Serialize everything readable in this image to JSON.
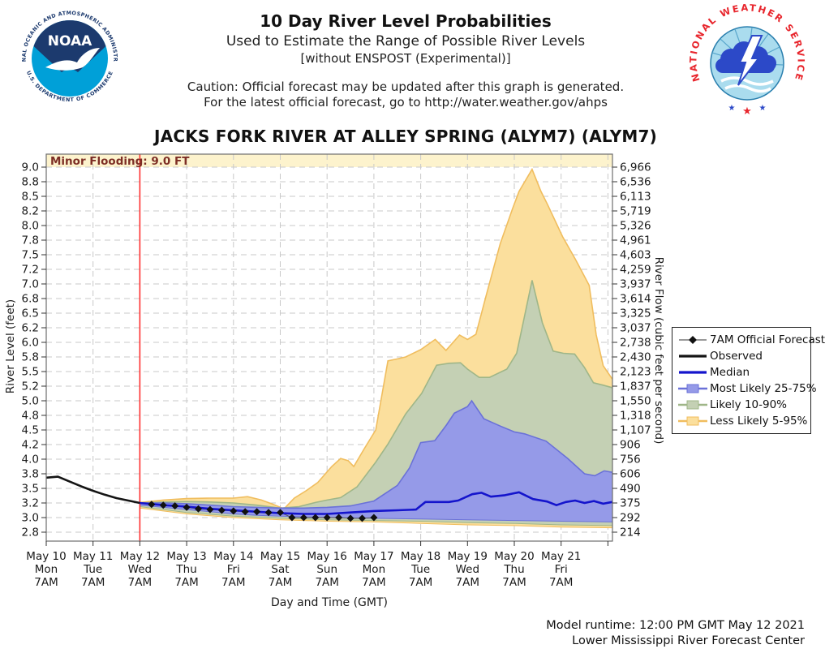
{
  "header": {
    "title": "10 Day River Level Probabilities",
    "subtitle": "Used to Estimate the Range of Possible River Levels",
    "subtitle2": "[without ENSPOST (Experimental)]",
    "caution_line1": "Caution: Official forecast may be updated after this graph is generated.",
    "caution_line2": "For the latest official forecast, go to http://water.weather.gov/ahps",
    "station_title": "JACKS FORK RIVER AT ALLEY SPRING (ALYM7) (ALYM7)"
  },
  "logos": {
    "noaa": {
      "ring_top": "NATIONAL OCEANIC AND ATMOSPHERIC ADMINISTRATION",
      "ring_bottom": "U.S. DEPARTMENT OF COMMERCE",
      "center": "NOAA"
    },
    "nws": {
      "arc": "NATIONAL WEATHER SERVICE",
      "star_left": "★",
      "star_center": "★",
      "star_right": "★"
    }
  },
  "footer": {
    "model_runtime": "Model runtime: 12:00 PM GMT May 12 2021",
    "center_name": "Lower Mississippi River Forecast Center"
  },
  "legend": {
    "items": [
      {
        "label": "7AM Official Forecast",
        "type": "diamond",
        "color": "#111111"
      },
      {
        "label": "Observed",
        "type": "line",
        "color": "#141414"
      },
      {
        "label": "Median",
        "type": "line",
        "color": "#1414cc"
      },
      {
        "label": "Most Likely 25-75%",
        "type": "box",
        "fill": "#959ae8",
        "edge": "#6a71d8"
      },
      {
        "label": "Likely 10-90%",
        "type": "box",
        "fill": "#c4d0b4",
        "edge": "#9fb688"
      },
      {
        "label": "Less Likely 5-95%",
        "type": "box",
        "fill": "#fbdf9d",
        "edge": "#f0bd5e"
      }
    ]
  },
  "chart_data": {
    "type": "area",
    "x_axis": {
      "label": "Day and Time (GMT)",
      "x_unit": "days since May 10 7AM GMT",
      "tick_dates": [
        "May 10",
        "May 11",
        "May 12",
        "May 13",
        "May 14",
        "May 15",
        "May 16",
        "May 17",
        "May 18",
        "May 19",
        "May 20",
        "May 21"
      ],
      "tick_days": [
        "Mon",
        "Tue",
        "Wed",
        "Thu",
        "Fri",
        "Sat",
        "Sun",
        "Mon",
        "Tue",
        "Wed",
        "Thu",
        "Fri"
      ],
      "tick_time": "7AM",
      "days_total": 12.09
    },
    "y_left": {
      "label": "River Level (feet)",
      "tick_values": [
        2.8,
        3.0,
        3.2,
        3.5,
        3.8,
        4.0,
        4.2,
        4.5,
        4.8,
        5.0,
        5.2,
        5.5,
        5.8,
        6.0,
        6.2,
        6.5,
        6.8,
        7.0,
        7.2,
        7.5,
        7.8,
        8.0,
        8.2,
        8.5,
        8.8,
        9.0
      ],
      "tick_labels": [
        "2.8",
        "3.0",
        "3.2",
        "3.5",
        "3.8",
        "4.0",
        "4.2",
        "4.5",
        "4.8",
        "5.0",
        "5.2",
        "5.5",
        "5.8",
        "6.0",
        "6.2",
        "6.5",
        "6.8",
        "7.0",
        "7.2",
        "7.5",
        "7.8",
        "8.0",
        "8.2",
        "8.5",
        "8.8",
        "9.0"
      ]
    },
    "y_right": {
      "label": "River Flow (cubic feet per second)",
      "tick_labels": [
        "214",
        "292",
        "375",
        "490",
        "606",
        "756",
        "906",
        "1,107",
        "1,318",
        "1,550",
        "1,837",
        "2,123",
        "2,430",
        "2,738",
        "3,037",
        "3,325",
        "3,614",
        "3,937",
        "4,259",
        "4,603",
        "4,961",
        "5,326",
        "5,719",
        "6,113",
        "6,536",
        "6,966"
      ]
    },
    "flood": {
      "label": "Minor Flooding: 9.0 FT",
      "stage": 9.0
    },
    "forecast_start_day": 2.0,
    "series": {
      "observed": [
        [
          0,
          3.72
        ],
        [
          0.25,
          3.74
        ],
        [
          0.5,
          3.64
        ],
        [
          0.75,
          3.54
        ],
        [
          1,
          3.45
        ],
        [
          1.25,
          3.37
        ],
        [
          1.5,
          3.3
        ],
        [
          1.75,
          3.25
        ],
        [
          2,
          3.2
        ]
      ],
      "official_forecast_diamonds": [
        [
          2.25,
          3.18
        ],
        [
          2.5,
          3.17
        ],
        [
          2.75,
          3.16
        ],
        [
          3,
          3.14
        ],
        [
          3.25,
          3.12
        ],
        [
          3.5,
          3.11
        ],
        [
          3.75,
          3.1
        ],
        [
          4,
          3.09
        ],
        [
          4.25,
          3.08
        ],
        [
          4.5,
          3.08
        ],
        [
          4.75,
          3.07
        ],
        [
          5,
          3.07
        ],
        [
          5.25,
          3.0
        ],
        [
          5.5,
          3.0
        ],
        [
          5.75,
          3.0
        ],
        [
          6,
          3.0
        ],
        [
          6.25,
          3.0
        ],
        [
          6.5,
          2.99
        ],
        [
          6.75,
          2.99
        ],
        [
          7,
          3.0
        ]
      ],
      "median": [
        [
          2,
          3.2
        ],
        [
          2.5,
          3.17
        ],
        [
          3,
          3.15
        ],
        [
          3.5,
          3.12
        ],
        [
          4,
          3.1
        ],
        [
          4.5,
          3.08
        ],
        [
          5,
          3.06
        ],
        [
          5.5,
          3.05
        ],
        [
          6,
          3.05
        ],
        [
          6.5,
          3.07
        ],
        [
          7,
          3.09
        ],
        [
          7.5,
          3.1
        ],
        [
          7.9,
          3.11
        ],
        [
          8.1,
          3.22
        ],
        [
          8.6,
          3.22
        ],
        [
          8.8,
          3.25
        ],
        [
          9.1,
          3.38
        ],
        [
          9.3,
          3.41
        ],
        [
          9.5,
          3.33
        ],
        [
          9.8,
          3.36
        ],
        [
          10.1,
          3.42
        ],
        [
          10.4,
          3.28
        ],
        [
          10.7,
          3.23
        ],
        [
          10.9,
          3.17
        ],
        [
          11.1,
          3.22
        ],
        [
          11.3,
          3.25
        ],
        [
          11.5,
          3.2
        ],
        [
          11.7,
          3.24
        ],
        [
          11.9,
          3.19
        ],
        [
          12.09,
          3.22
        ]
      ],
      "band_25_75": {
        "top": [
          [
            2,
            3.2
          ],
          [
            2.5,
            3.2
          ],
          [
            3,
            3.19
          ],
          [
            3.5,
            3.17
          ],
          [
            4,
            3.15
          ],
          [
            4.5,
            3.14
          ],
          [
            5,
            3.13
          ],
          [
            5.5,
            3.13
          ],
          [
            6,
            3.14
          ],
          [
            6.5,
            3.16
          ],
          [
            7,
            3.24
          ],
          [
            7.5,
            3.56
          ],
          [
            7.76,
            3.88
          ],
          [
            8,
            4.24
          ],
          [
            8.3,
            4.28
          ],
          [
            8.55,
            4.6
          ],
          [
            8.72,
            4.83
          ],
          [
            9,
            4.92
          ],
          [
            9.09,
            5.0
          ],
          [
            9.35,
            4.73
          ],
          [
            9.7,
            4.58
          ],
          [
            10,
            4.46
          ],
          [
            10.22,
            4.42
          ],
          [
            10.68,
            4.27
          ],
          [
            11.14,
            4.01
          ],
          [
            11.5,
            3.8
          ],
          [
            11.72,
            3.76
          ],
          [
            11.92,
            3.84
          ],
          [
            12.09,
            3.82
          ]
        ],
        "bottom": [
          [
            2,
            3.17
          ],
          [
            2.5,
            3.14
          ],
          [
            3,
            3.11
          ],
          [
            3.5,
            3.08
          ],
          [
            4,
            3.05
          ],
          [
            4.5,
            3.03
          ],
          [
            5,
            3.02
          ],
          [
            5.5,
            3.01
          ],
          [
            6,
            3.0
          ],
          [
            7,
            2.99
          ],
          [
            8,
            2.98
          ],
          [
            9,
            2.97
          ],
          [
            10,
            2.96
          ],
          [
            11,
            2.95
          ],
          [
            12.09,
            2.94
          ]
        ]
      },
      "band_10_90": {
        "top": [
          [
            2,
            3.2
          ],
          [
            2.5,
            3.22
          ],
          [
            3,
            3.23
          ],
          [
            3.5,
            3.22
          ],
          [
            4,
            3.2
          ],
          [
            4.5,
            3.17
          ],
          [
            5,
            3.13
          ],
          [
            5.4,
            3.15
          ],
          [
            5.75,
            3.21
          ],
          [
            6,
            3.26
          ],
          [
            6.29,
            3.31
          ],
          [
            6.64,
            3.53
          ],
          [
            7.04,
            3.96
          ],
          [
            7.3,
            4.21
          ],
          [
            7.68,
            4.82
          ],
          [
            8.02,
            5.1
          ],
          [
            8.34,
            5.63
          ],
          [
            8.6,
            5.67
          ],
          [
            8.85,
            5.68
          ],
          [
            9,
            5.55
          ],
          [
            9.25,
            5.38
          ],
          [
            9.47,
            5.38
          ],
          [
            9.84,
            5.55
          ],
          [
            10.05,
            5.85
          ],
          [
            10.2,
            6.35
          ],
          [
            10.38,
            7.05
          ],
          [
            10.6,
            6.3
          ],
          [
            10.83,
            5.88
          ],
          [
            11.05,
            5.85
          ],
          [
            11.29,
            5.84
          ],
          [
            11.5,
            5.58
          ],
          [
            11.69,
            5.27
          ],
          [
            11.9,
            5.22
          ],
          [
            12.09,
            5.18
          ]
        ],
        "bottom": [
          [
            2,
            3.15
          ],
          [
            3,
            3.07
          ],
          [
            4,
            3.02
          ],
          [
            5,
            2.99
          ],
          [
            6,
            2.97
          ],
          [
            7,
            2.96
          ],
          [
            8,
            2.95
          ],
          [
            9,
            2.93
          ],
          [
            10,
            2.92
          ],
          [
            11,
            2.9
          ],
          [
            12.09,
            2.89
          ]
        ]
      },
      "band_5_95": {
        "top": [
          [
            2,
            3.21
          ],
          [
            2.5,
            3.26
          ],
          [
            3,
            3.29
          ],
          [
            3.5,
            3.3
          ],
          [
            4,
            3.3
          ],
          [
            4.3,
            3.33
          ],
          [
            4.6,
            3.26
          ],
          [
            4.85,
            3.18
          ],
          [
            5.08,
            3.12
          ],
          [
            5.3,
            3.3
          ],
          [
            5.55,
            3.45
          ],
          [
            5.8,
            3.62
          ],
          [
            6.1,
            3.9
          ],
          [
            6.29,
            4.01
          ],
          [
            6.45,
            3.98
          ],
          [
            6.57,
            3.9
          ],
          [
            6.8,
            4.15
          ],
          [
            7.04,
            4.5
          ],
          [
            7.3,
            5.72
          ],
          [
            7.5,
            5.76
          ],
          [
            7.68,
            5.8
          ],
          [
            8,
            5.9
          ],
          [
            8.31,
            6.04
          ],
          [
            8.54,
            5.89
          ],
          [
            8.83,
            6.1
          ],
          [
            9,
            6.04
          ],
          [
            9.18,
            6.11
          ],
          [
            9.41,
            6.87
          ],
          [
            9.7,
            7.73
          ],
          [
            9.96,
            8.24
          ],
          [
            10.1,
            8.6
          ],
          [
            10.38,
            8.97
          ],
          [
            10.57,
            8.6
          ],
          [
            10.71,
            8.33
          ],
          [
            11.03,
            7.85
          ],
          [
            11.32,
            7.38
          ],
          [
            11.6,
            6.98
          ],
          [
            11.75,
            6.1
          ],
          [
            11.9,
            5.62
          ],
          [
            12.09,
            5.35
          ]
        ],
        "bottom": [
          [
            2,
            3.13
          ],
          [
            3,
            3.05
          ],
          [
            4,
            3.0
          ],
          [
            5,
            2.97
          ],
          [
            6,
            2.95
          ],
          [
            7,
            2.94
          ],
          [
            8,
            2.92
          ],
          [
            9,
            2.9
          ],
          [
            10,
            2.89
          ],
          [
            11,
            2.87
          ],
          [
            12.09,
            2.86
          ]
        ]
      }
    },
    "colors": {
      "band_5_95_fill": "#fbdf9d",
      "band_5_95_edge": "#f0bd5e",
      "band_10_90_fill": "#c4d0b4",
      "band_10_90_edge": "#9fb688",
      "band_25_75_fill": "#959ae8",
      "band_25_75_edge": "#6a71d8",
      "median_line": "#1414cc",
      "observed_line": "#141414",
      "diamond": "#111111",
      "diamond_line": "#555555",
      "now_line": "#ff3030",
      "flood_band": "#fdf3cd",
      "flood_text": "#7d2e25",
      "grid": "#c9c9c9",
      "frame": "#6e6e6e",
      "tick": "#333333",
      "label": "#1a1a1a",
      "noaa_navy": "#1c3a6e",
      "noaa_cyan": "#00a0d8",
      "nws_red": "#e8262d",
      "nws_blue": "#2c49c8",
      "nws_sky": "#aadcee"
    }
  }
}
